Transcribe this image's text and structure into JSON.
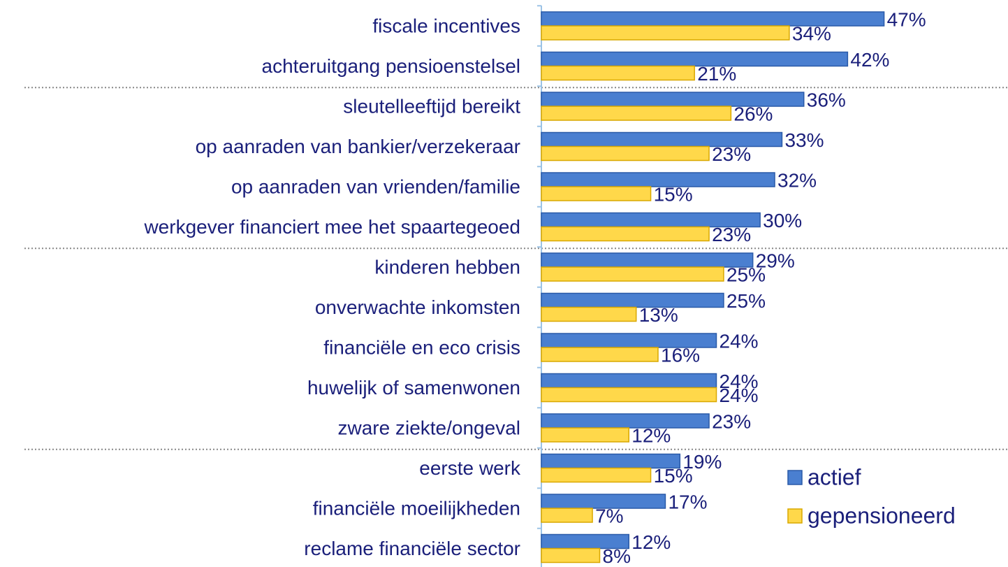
{
  "chart_data": {
    "type": "bar",
    "orientation": "horizontal",
    "categories": [
      "fiscale incentives",
      "achteruitgang pensioenstelsel",
      "sleutelleeftijd bereikt",
      "op aanraden van bankier/verzekeraar",
      "op aanraden van vrienden/familie",
      "werkgever financiert mee het spaartegeoed",
      "kinderen hebben",
      "onverwachte inkomsten",
      "financiële en eco crisis",
      "huwelijk of samenwonen",
      "zware ziekte/ongeval",
      "eerste werk",
      "financiële moeilijkheden",
      "reclame financiële sector"
    ],
    "series": [
      {
        "name": "actief",
        "color": "#4a7fd0",
        "values": [
          47,
          42,
          36,
          33,
          32,
          30,
          29,
          25,
          24,
          24,
          23,
          19,
          17,
          12
        ],
        "value_labels": [
          "47%",
          "42%",
          "36%",
          "33%",
          "32%",
          "30%",
          "29%",
          "25%",
          "24%",
          "24%",
          "23%",
          "19%",
          "17%",
          "12%"
        ]
      },
      {
        "name": "gepensioneerd",
        "color": "#ffd84a",
        "values": [
          34,
          21,
          26,
          23,
          15,
          23,
          25,
          13,
          16,
          24,
          12,
          15,
          7,
          8
        ],
        "value_labels": [
          "34%",
          "21%",
          "26%",
          "23%",
          "15%",
          "23%",
          "25%",
          "13%",
          "16%",
          "24%",
          "12%",
          "15%",
          "7%",
          "8%"
        ]
      }
    ],
    "xlim": [
      0,
      64
    ],
    "legend": "lower right"
  }
}
